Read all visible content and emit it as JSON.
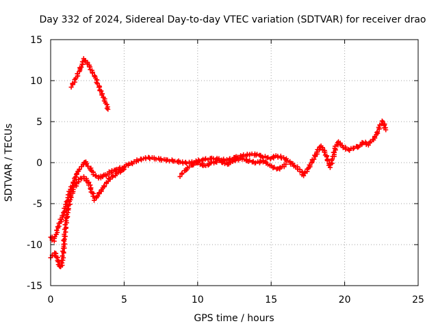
{
  "chart_data": {
    "type": "scatter",
    "title": "Day 332 of 2024, Sidereal Day-to-day VTEC variation (SDTVAR) for receiver drao",
    "xlabel": "GPS time / hours",
    "ylabel": "SDTVAR / TECUs",
    "xlim": [
      0,
      25
    ],
    "ylim": [
      -15,
      15
    ],
    "xticks": [
      0,
      5,
      10,
      15,
      20,
      25
    ],
    "yticks": [
      -15,
      -10,
      -5,
      0,
      5,
      10,
      15
    ],
    "xtick_labels": [
      "0",
      "5",
      "10",
      "15",
      "20",
      "25"
    ],
    "ytick_labels": [
      "-15",
      "-10",
      "-5",
      "0",
      "5",
      "10",
      "15"
    ],
    "grid": true,
    "marker": "+",
    "color": "#ff0000",
    "series": [
      {
        "name": "main",
        "x": [
          0.0,
          0.2,
          0.4,
          0.5,
          0.6,
          0.7,
          0.8,
          0.9,
          1.0,
          1.1,
          1.2,
          1.3,
          1.4,
          1.5,
          1.6,
          1.7,
          1.8,
          1.9,
          2.0,
          2.1,
          2.2,
          2.3,
          2.4,
          2.5,
          2.6,
          2.8,
          3.0,
          3.2,
          3.4,
          3.6,
          3.8,
          4.0,
          4.3,
          4.6,
          5.0,
          5.3,
          5.6,
          6.0,
          6.3,
          6.6,
          7.0,
          7.5,
          8.0,
          8.5,
          9.0,
          9.5,
          10.0,
          10.5,
          11.0,
          11.5,
          12.0,
          12.5,
          13.0,
          13.5,
          14.0,
          14.5,
          15.0,
          15.3,
          15.6,
          16.0,
          16.3,
          16.6,
          17.0,
          17.2,
          17.4,
          17.6,
          17.8,
          18.0,
          18.2,
          18.4,
          18.6,
          18.8,
          19.0,
          19.2,
          19.4,
          19.6,
          19.8,
          20.0,
          20.3,
          20.6,
          21.0,
          21.3,
          21.6,
          22.0,
          22.2,
          22.4,
          22.6,
          22.8
        ],
        "y": [
          -9.0,
          -9.5,
          -8.5,
          -8.0,
          -7.5,
          -7.0,
          -6.5,
          -6.0,
          -5.5,
          -5.0,
          -4.2,
          -3.5,
          -3.0,
          -2.6,
          -2.2,
          -1.8,
          -1.4,
          -1.0,
          -0.7,
          -0.4,
          -0.2,
          0.0,
          0.0,
          -0.2,
          -0.5,
          -1.0,
          -1.5,
          -1.8,
          -1.8,
          -1.6,
          -1.5,
          -1.2,
          -1.0,
          -0.8,
          -0.5,
          -0.2,
          0.0,
          0.3,
          0.5,
          0.6,
          0.5,
          0.4,
          0.3,
          0.2,
          0.0,
          0.0,
          0.2,
          0.4,
          0.5,
          0.4,
          0.3,
          0.6,
          0.8,
          1.0,
          1.0,
          0.7,
          0.5,
          0.8,
          0.7,
          0.4,
          0.0,
          -0.4,
          -1.0,
          -1.5,
          -1.0,
          -0.5,
          0.2,
          0.8,
          1.5,
          2.0,
          1.5,
          0.5,
          -0.5,
          0.5,
          2.0,
          2.5,
          2.0,
          1.8,
          1.5,
          1.8,
          2.0,
          2.5,
          2.2,
          3.0,
          3.5,
          4.5,
          5.0,
          4.0
        ]
      },
      {
        "name": "lower-branch",
        "x": [
          0.0,
          0.3,
          0.5,
          0.6,
          0.7,
          0.8,
          0.9,
          1.0,
          1.1,
          1.2,
          1.4,
          1.6,
          1.8,
          2.0,
          2.2,
          2.4,
          2.6,
          2.8,
          3.0,
          3.2,
          3.4,
          3.6,
          3.8,
          4.0,
          4.3,
          4.6,
          5.0
        ],
        "y": [
          -11.5,
          -11.0,
          -12.0,
          -12.5,
          -12.8,
          -12.0,
          -10.0,
          -8.0,
          -6.5,
          -5.5,
          -4.0,
          -3.0,
          -2.5,
          -2.0,
          -1.8,
          -2.0,
          -2.5,
          -3.5,
          -4.5,
          -4.0,
          -3.5,
          -3.0,
          -2.5,
          -2.0,
          -1.6,
          -1.2,
          -0.8
        ]
      },
      {
        "name": "upper-segment",
        "x": [
          1.4,
          1.6,
          1.8,
          2.0,
          2.2,
          2.3,
          2.4,
          2.6,
          2.8,
          3.0,
          3.2,
          3.4,
          3.6,
          3.8,
          3.9
        ],
        "y": [
          9.3,
          9.9,
          10.6,
          11.4,
          12.2,
          12.6,
          12.4,
          11.9,
          11.1,
          10.6,
          9.7,
          8.8,
          7.9,
          7.0,
          6.5
        ]
      },
      {
        "name": "mid-segment",
        "x": [
          8.8,
          9.2,
          9.6,
          10.0,
          10.5,
          11.0,
          11.5,
          12.0,
          12.5,
          13.0,
          13.5,
          14.0,
          14.5,
          15.0,
          15.5,
          16.0
        ],
        "y": [
          -1.6,
          -0.8,
          -0.3,
          0.0,
          -0.4,
          0.0,
          0.2,
          -0.2,
          0.3,
          0.5,
          0.2,
          0.0,
          0.2,
          -0.5,
          -0.8,
          -0.2
        ]
      }
    ]
  }
}
